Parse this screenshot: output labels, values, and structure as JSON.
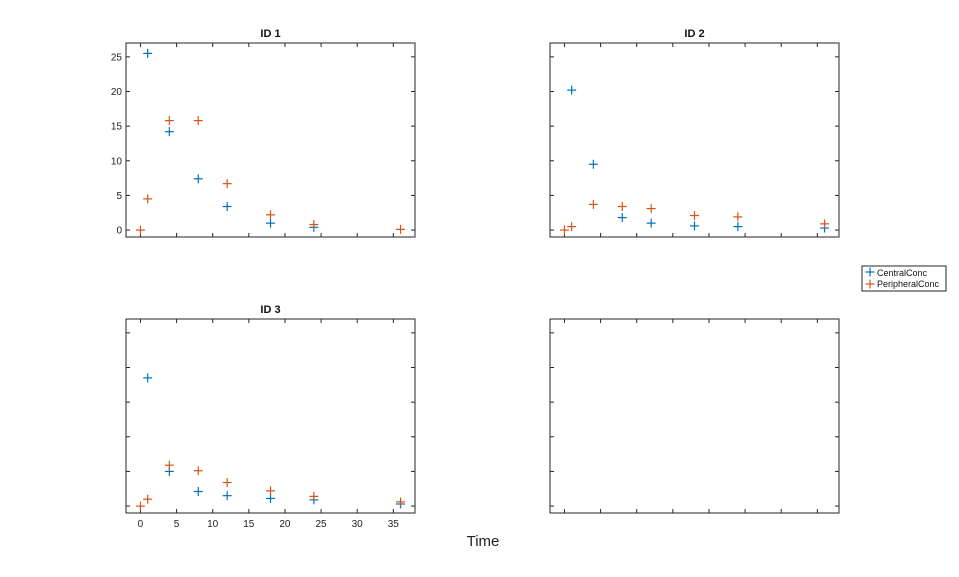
{
  "chart_data": [
    {
      "type": "scatter",
      "title": "ID 1",
      "xlim": [
        -2,
        38
      ],
      "ylim": [
        -1,
        27
      ],
      "yticks": [
        0,
        5,
        10,
        15,
        20,
        25
      ],
      "show_y_tick_labels": true,
      "show_x_tick_labels": false,
      "series": [
        {
          "name": "CentralConc",
          "x": [
            1,
            4,
            8,
            12,
            18,
            24
          ],
          "y": [
            25.5,
            14.2,
            7.4,
            3.4,
            1.0,
            0.4
          ]
        },
        {
          "name": "PeripheralConc",
          "x": [
            0,
            1,
            4,
            8,
            12,
            18,
            24,
            36
          ],
          "y": [
            0,
            4.5,
            15.8,
            15.8,
            6.7,
            2.2,
            0.8,
            0.1
          ]
        }
      ]
    },
    {
      "type": "scatter",
      "title": "ID 2",
      "xlim": [
        -2,
        38
      ],
      "ylim": [
        -1,
        27
      ],
      "yticks": [
        0,
        5,
        10,
        15,
        20,
        25
      ],
      "show_y_tick_labels": false,
      "show_x_tick_labels": false,
      "series": [
        {
          "name": "CentralConc",
          "x": [
            1,
            4,
            8,
            12,
            18,
            24,
            36
          ],
          "y": [
            20.2,
            9.5,
            1.8,
            1.0,
            0.6,
            0.5,
            0.3
          ]
        },
        {
          "name": "PeripheralConc",
          "x": [
            0,
            1,
            4,
            8,
            12,
            18,
            24,
            36
          ],
          "y": [
            0,
            0.5,
            3.7,
            3.4,
            3.1,
            2.1,
            1.9,
            0.9
          ]
        }
      ]
    },
    {
      "type": "scatter",
      "title": "ID 3",
      "xlim": [
        -2,
        38
      ],
      "ylim": [
        -1,
        27
      ],
      "yticks": [
        0,
        5,
        10,
        15,
        20,
        25
      ],
      "xticks": [
        0,
        5,
        10,
        15,
        20,
        25,
        30,
        35
      ],
      "show_y_tick_labels": false,
      "show_x_tick_labels": true,
      "series": [
        {
          "name": "CentralConc",
          "x": [
            1,
            4,
            8,
            12,
            18,
            24,
            36
          ],
          "y": [
            18.5,
            5.0,
            2.1,
            1.5,
            1.1,
            0.9,
            0.3
          ]
        },
        {
          "name": "PeripheralConc",
          "x": [
            0,
            1,
            4,
            8,
            12,
            18,
            24,
            36
          ],
          "y": [
            0,
            1.0,
            5.9,
            5.1,
            3.4,
            2.2,
            1.4,
            0.6
          ]
        }
      ]
    }
  ],
  "xlabel": "Time",
  "legend": {
    "placement": "right",
    "entries": [
      "CentralConc",
      "PeripheralConc"
    ]
  },
  "colors": {
    "CentralConc": "#0072BD",
    "PeripheralConc": "#D95319",
    "axis": "#262626"
  }
}
